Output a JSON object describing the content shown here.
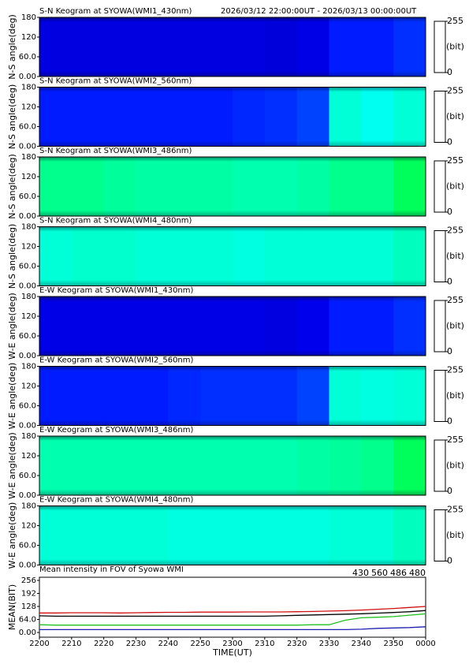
{
  "chart_data": [
    {
      "type": "keogram",
      "title": "S-N Keogram at SYOWA(WMI1_430nm)",
      "subtitle": "2026/03/12 22:00:00UT - 2026/03/13 00:00:00UT",
      "ylabel": "N-S angle(deg)",
      "ylim": [
        0,
        180
      ],
      "yticks": [
        {
          "value": 0,
          "label": "0.00"
        },
        {
          "value": 60,
          "label": "60.0"
        },
        120,
        180
      ],
      "clim": [
        0,
        255
      ],
      "cticks": [
        0,
        255
      ],
      "clabel": "(bit)",
      "values": [
        28,
        28,
        28,
        28,
        28,
        28,
        28,
        26,
        30,
        45,
        45,
        50
      ]
    },
    {
      "type": "keogram",
      "title": "S-N Keogram at SYOWA(WMI2_560nm)",
      "ylabel": "N-S angle(deg)",
      "ylim": [
        0,
        180
      ],
      "yticks": [
        {
          "value": 0,
          "label": "0.00"
        },
        {
          "value": 60,
          "label": "60.0"
        },
        120,
        180
      ],
      "clim": [
        0,
        255
      ],
      "cticks": [
        0,
        255
      ],
      "clabel": "(bit)",
      "values": [
        45,
        45,
        45,
        45,
        45,
        45,
        48,
        50,
        55,
        110,
        105,
        110
      ]
    },
    {
      "type": "keogram",
      "title": "S-N Keogram at SYOWA(WMI3_486nm)",
      "ylabel": "N-S angle(deg)",
      "ylim": [
        0,
        180
      ],
      "yticks": [
        {
          "value": 0,
          "label": "0.00"
        },
        {
          "value": 60,
          "label": "60.0"
        },
        120,
        180
      ],
      "clim": [
        0,
        255
      ],
      "cticks": [
        0,
        255
      ],
      "clabel": "(bit)",
      "values": [
        125,
        125,
        122,
        120,
        120,
        120,
        118,
        118,
        120,
        125,
        125,
        135
      ]
    },
    {
      "type": "keogram",
      "title": "S-N Keogram at SYOWA(WMI4_480nm)",
      "ylabel": "N-S angle(deg)",
      "ylim": [
        0,
        180
      ],
      "yticks": [
        {
          "value": 0,
          "label": "0.00"
        },
        {
          "value": 60,
          "label": "60.0"
        },
        120,
        180
      ],
      "clim": [
        0,
        255
      ],
      "cticks": [
        0,
        255
      ],
      "clabel": "(bit)",
      "values": [
        110,
        112,
        112,
        110,
        110,
        110,
        108,
        110,
        110,
        110,
        110,
        115
      ]
    },
    {
      "type": "keogram",
      "title": "E-W Keogram at SYOWA(WMI1_430nm)",
      "ylabel": "W-E angle(deg)",
      "ylim": [
        0,
        180
      ],
      "yticks": [
        {
          "value": 0,
          "label": "0.00"
        },
        {
          "value": 60,
          "label": "60.0"
        },
        120,
        180
      ],
      "clim": [
        0,
        255
      ],
      "cticks": [
        0,
        255
      ],
      "clabel": "(bit)",
      "values": [
        30,
        30,
        30,
        30,
        30,
        30,
        30,
        28,
        32,
        45,
        45,
        50
      ]
    },
    {
      "type": "keogram",
      "title": "E-W Keogram at SYOWA(WMI2_560nm)",
      "ylabel": "W-E angle(deg)",
      "ylim": [
        0,
        180
      ],
      "yticks": [
        {
          "value": 0,
          "label": "0.00"
        },
        {
          "value": 60,
          "label": "60.0"
        },
        120,
        180
      ],
      "clim": [
        0,
        255
      ],
      "cticks": [
        0,
        255
      ],
      "clabel": "(bit)",
      "values": [
        45,
        45,
        45,
        45,
        48,
        50,
        50,
        50,
        55,
        110,
        108,
        110
      ]
    },
    {
      "type": "keogram",
      "title": "E-W Keogram at SYOWA(WMI3_486nm)",
      "ylabel": "W-E angle(deg)",
      "ylim": [
        0,
        180
      ],
      "yticks": [
        {
          "value": 0,
          "label": "0.00"
        },
        {
          "value": 60,
          "label": "60.0"
        },
        120,
        180
      ],
      "clim": [
        0,
        255
      ],
      "cticks": [
        0,
        255
      ],
      "clabel": "(bit)",
      "values": [
        118,
        118,
        118,
        118,
        118,
        118,
        118,
        118,
        120,
        122,
        125,
        135
      ]
    },
    {
      "type": "keogram",
      "title": "E-W Keogram at SYOWA(WMI4_480nm)",
      "ylabel": "W-E angle(deg)",
      "ylim": [
        0,
        180
      ],
      "yticks": [
        {
          "value": 0,
          "label": "0.00"
        },
        {
          "value": 60,
          "label": "60.0"
        },
        120,
        180
      ],
      "clim": [
        0,
        255
      ],
      "cticks": [
        0,
        255
      ],
      "clabel": "(bit)",
      "values": [
        110,
        110,
        110,
        110,
        108,
        108,
        108,
        108,
        108,
        110,
        110,
        115
      ]
    },
    {
      "type": "line",
      "title": "Mean intensity in FOV of Syowa WMI",
      "xlabel": "TIME(UT)",
      "ylabel": "MEAN(BIT)",
      "x": [
        0,
        5,
        10,
        15,
        20,
        25,
        30,
        35,
        40,
        45,
        50,
        55,
        60,
        65,
        70,
        75,
        80,
        85,
        90,
        95,
        100,
        105,
        110,
        115,
        120
      ],
      "xlim": [
        0,
        120
      ],
      "xticks": [
        {
          "value": 0,
          "label": "2200"
        },
        {
          "value": 10,
          "label": "2210"
        },
        {
          "value": 20,
          "label": "2220"
        },
        {
          "value": 30,
          "label": "2230"
        },
        {
          "value": 40,
          "label": "2240"
        },
        {
          "value": 50,
          "label": "2250"
        },
        {
          "value": 60,
          "label": "2300"
        },
        {
          "value": 70,
          "label": "2310"
        },
        {
          "value": 80,
          "label": "2320"
        },
        {
          "value": 90,
          "label": "2330"
        },
        {
          "value": 100,
          "label": "2340"
        },
        {
          "value": 110,
          "label": "2350"
        },
        {
          "value": 120,
          "label": "0000"
        }
      ],
      "ylim": [
        0,
        256
      ],
      "yticks": [
        {
          "value": 0,
          "label": "0.00"
        },
        {
          "value": 64,
          "label": "64.0"
        },
        128,
        192,
        256
      ],
      "series": [
        {
          "name": "430",
          "color": "#1f1fb0",
          "values": [
            14,
            14,
            14,
            14,
            14,
            14,
            14,
            14,
            14,
            14,
            14,
            14,
            14,
            14,
            14,
            14,
            14,
            14,
            14,
            14,
            16,
            20,
            22,
            24,
            28
          ]
        },
        {
          "name": "560",
          "color": "#20c020",
          "values": [
            38,
            36,
            36,
            36,
            36,
            36,
            36,
            36,
            36,
            36,
            36,
            36,
            36,
            36,
            36,
            36,
            36,
            38,
            38,
            60,
            72,
            75,
            78,
            85,
            92
          ]
        },
        {
          "name": "486",
          "color": "#d01010",
          "values": [
            96,
            96,
            97,
            97,
            97,
            96,
            97,
            98,
            99,
            99,
            100,
            100,
            100,
            101,
            101,
            101,
            102,
            103,
            105,
            107,
            110,
            114,
            118,
            123,
            128
          ]
        },
        {
          "name": "480",
          "color": "#000000",
          "values": [
            82,
            80,
            80,
            80,
            80,
            80,
            80,
            80,
            80,
            80,
            80,
            80,
            80,
            80,
            80,
            82,
            84,
            86,
            88,
            90,
            92,
            95,
            98,
            102,
            108
          ]
        }
      ]
    }
  ]
}
